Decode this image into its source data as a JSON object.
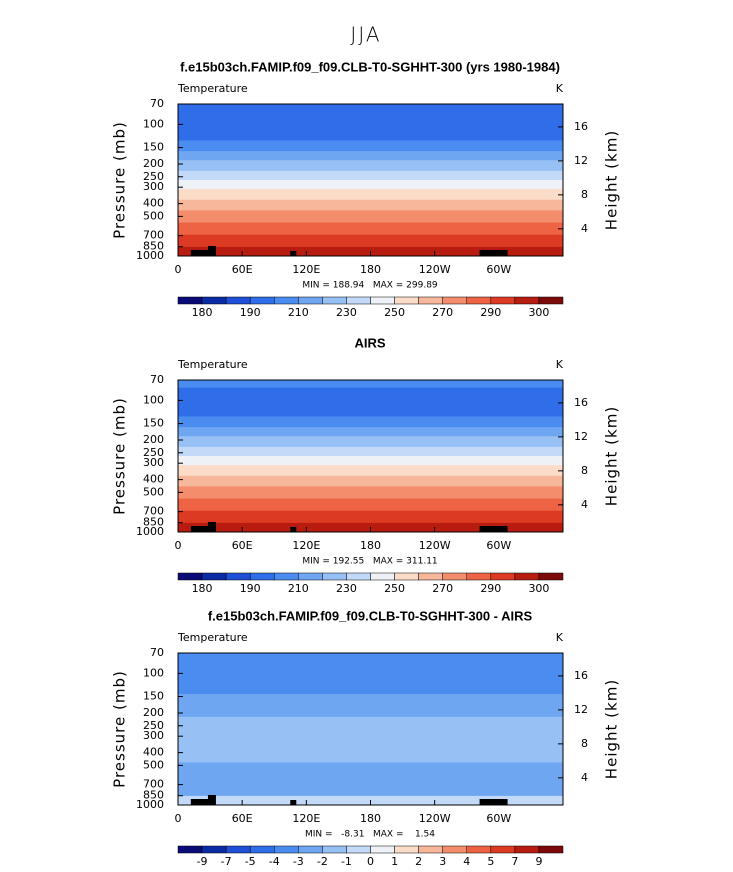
{
  "suptitle": "JJA",
  "chart_data": [
    {
      "type": "contour",
      "title": "f.e15b03ch.FAMIP.f09_f09.CLB-T0-SGHHT-300 (yrs 1980-1984)",
      "subtitle": "Temperature",
      "units": "K",
      "y_label": "Pressure (mb)",
      "y2_label": "Height (km)",
      "xlim": [
        0,
        360
      ],
      "xticks": [
        0,
        {
          "value": 60,
          "label": "60E"
        },
        {
          "value": 120,
          "label": "120E"
        },
        180,
        {
          "value": 240,
          "label": "120W"
        },
        {
          "value": 300,
          "label": "60W"
        }
      ],
      "ylim": [
        70,
        1000
      ],
      "log_y": true,
      "yticks": [
        70,
        100,
        150,
        200,
        250,
        300,
        400,
        500,
        700,
        850,
        1000
      ],
      "y2lim": [
        0.8,
        18.7
      ],
      "y2ticks": [
        4,
        8,
        12,
        16
      ],
      "stats": "MIN = 188.94   MAX = 299.89",
      "colorbar": {
        "colors": [
          "#0b0b78",
          "#0a2aa6",
          "#1f4fd6",
          "#2f6ee8",
          "#4a8cf0",
          "#6fa6f2",
          "#97c0f5",
          "#c2daf8",
          "#eef1f6",
          "#fbdcc8",
          "#f7b79a",
          "#f38d6c",
          "#ee6343",
          "#dc3a22",
          "#b81c10",
          "#7d0a0a"
        ],
        "labels": [
          180,
          190,
          210,
          230,
          250,
          270,
          290,
          300
        ]
      }
    },
    {
      "type": "contour",
      "title": "AIRS",
      "subtitle": "Temperature",
      "units": "K",
      "y_label": "Pressure (mb)",
      "y2_label": "Height (km)",
      "xlim": [
        0,
        360
      ],
      "xticks": [
        0,
        {
          "value": 60,
          "label": "60E"
        },
        {
          "value": 120,
          "label": "120E"
        },
        180,
        {
          "value": 240,
          "label": "120W"
        },
        {
          "value": 300,
          "label": "60W"
        }
      ],
      "ylim": [
        70,
        1000
      ],
      "log_y": true,
      "yticks": [
        70,
        100,
        150,
        200,
        250,
        300,
        400,
        500,
        700,
        850,
        1000
      ],
      "y2lim": [
        0.8,
        18.7
      ],
      "y2ticks": [
        4,
        8,
        12,
        16
      ],
      "stats": "MIN = 192.55   MAX = 311.11",
      "colorbar": {
        "colors": [
          "#0b0b78",
          "#0a2aa6",
          "#1f4fd6",
          "#2f6ee8",
          "#4a8cf0",
          "#6fa6f2",
          "#97c0f5",
          "#c2daf8",
          "#eef1f6",
          "#fbdcc8",
          "#f7b79a",
          "#f38d6c",
          "#ee6343",
          "#dc3a22",
          "#b81c10",
          "#7d0a0a"
        ],
        "labels": [
          180,
          190,
          210,
          230,
          250,
          270,
          290,
          300
        ]
      }
    },
    {
      "type": "contour",
      "title": "f.e15b03ch.FAMIP.f09_f09.CLB-T0-SGHHT-300 - AIRS",
      "subtitle": "Temperature",
      "units": "K",
      "y_label": "Pressure (mb)",
      "y2_label": "Height (km)",
      "xlim": [
        0,
        360
      ],
      "xticks": [
        0,
        {
          "value": 60,
          "label": "60E"
        },
        {
          "value": 120,
          "label": "120E"
        },
        180,
        {
          "value": 240,
          "label": "120W"
        },
        {
          "value": 300,
          "label": "60W"
        }
      ],
      "ylim": [
        70,
        1000
      ],
      "log_y": true,
      "yticks": [
        70,
        100,
        150,
        200,
        250,
        300,
        400,
        500,
        700,
        850,
        1000
      ],
      "y2lim": [
        0.8,
        18.7
      ],
      "y2ticks": [
        4,
        8,
        12,
        16
      ],
      "stats": "MIN =   -8.31   MAX =    1.54",
      "colorbar": {
        "colors": [
          "#0b0b78",
          "#0a2aa6",
          "#1f4fd6",
          "#2f6ee8",
          "#4a8cf0",
          "#6fa6f2",
          "#97c0f5",
          "#c2daf8",
          "#eef1f6",
          "#fbdcc8",
          "#f7b79a",
          "#f38d6c",
          "#ee6343",
          "#dc3a22",
          "#b81c10",
          "#7d0a0a"
        ],
        "labels": [
          -9,
          -7,
          -5,
          -4,
          -3,
          -2,
          -1,
          0,
          1,
          2,
          3,
          4,
          5,
          7,
          9
        ]
      }
    }
  ]
}
